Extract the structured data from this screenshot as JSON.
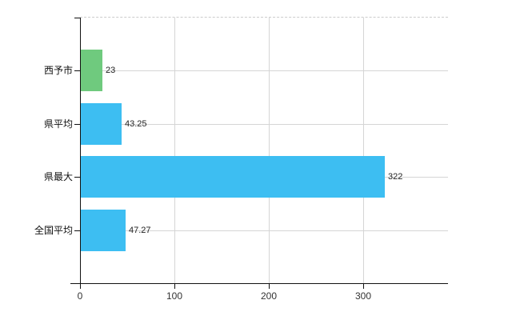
{
  "chart_data": {
    "type": "bar",
    "orientation": "horizontal",
    "title": "",
    "categories": [
      "西予市",
      "県平均",
      "県最大",
      "全国平均"
    ],
    "values": [
      23,
      43.25,
      322,
      47.27
    ],
    "value_labels": [
      "23",
      "43.25",
      "322",
      "47.27"
    ],
    "bar_colors": [
      "#6fca7e",
      "#3dbef2",
      "#3dbef2",
      "#3dbef2"
    ],
    "x_ticks": [
      0,
      100,
      200,
      300
    ],
    "x_tick_labels": [
      "0",
      "100",
      "200",
      "300"
    ],
    "xlim": [
      0,
      390
    ],
    "grid": true,
    "legend": "none",
    "colors": {
      "green_bar": "#6fca7e",
      "blue_bar": "#3dbef2",
      "axis": "#111111",
      "grid": "#d5d5d5",
      "top_border": "#cccccc",
      "tick_label": "#333333",
      "category_label": "#111111",
      "value_label": "#222222",
      "background": "#ffffff"
    }
  }
}
